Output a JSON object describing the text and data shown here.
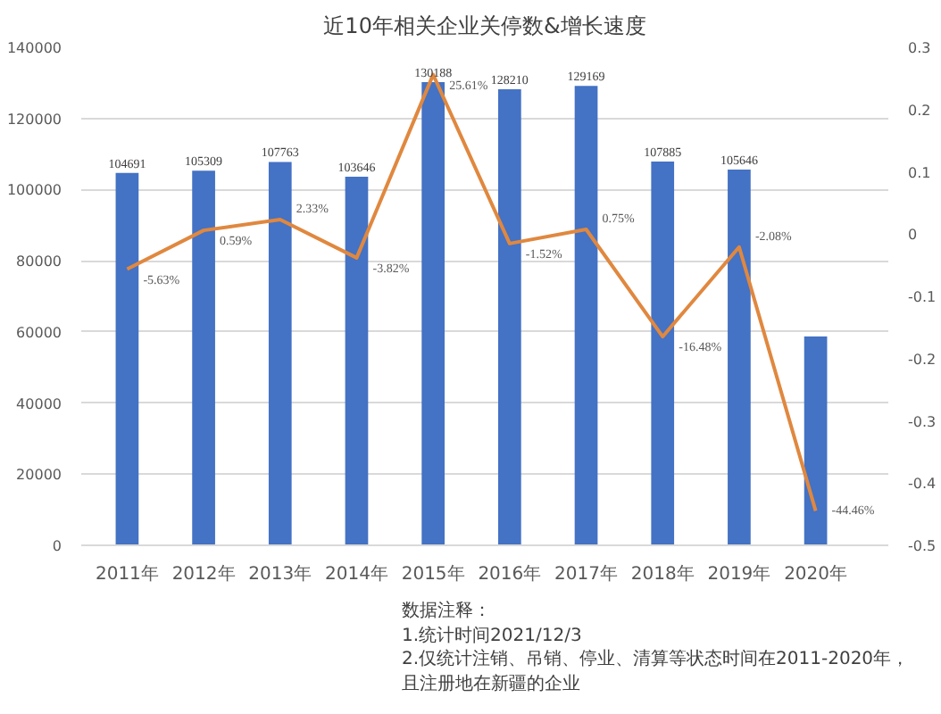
{
  "chart_data": {
    "type": "bar",
    "title": "近10年相关企业关停数&增长速度",
    "categories": [
      "2011年",
      "2012年",
      "2013年",
      "2014年",
      "2015年",
      "2016年",
      "2017年",
      "2018年",
      "2019年",
      "2020年"
    ],
    "series": [
      {
        "color": "#4472c4",
        "values": [
          104691,
          105309,
          107763,
          103646,
          130188,
          128210,
          129169,
          107885,
          105646,
          58700
        ],
        "value_labels": [
          "104691",
          "105309",
          "107763",
          "103646",
          "130188",
          "128210",
          "129169",
          "107885",
          "105646",
          null
        ]
      },
      {
        "type": "line",
        "axis": "y2",
        "color": "#e0883f",
        "values": [
          -0.0563,
          0.0059,
          0.0233,
          -0.0382,
          0.2561,
          -0.0152,
          0.0075,
          -0.1648,
          -0.0208,
          -0.4446
        ],
        "value_labels": [
          "-5.63%",
          "0.59%",
          "2.33%",
          "-3.82%",
          "25.61%",
          "-1.52%",
          "0.75%",
          "-16.48%",
          "-2.08%",
          "-44.46%"
        ]
      }
    ],
    "ylim": [
      0,
      140000
    ],
    "yticks": [
      0,
      20000,
      40000,
      60000,
      80000,
      100000,
      120000,
      140000
    ],
    "y2lim": [
      -0.5,
      0.3
    ],
    "y2ticks": [
      -0.5,
      -0.4,
      -0.3,
      -0.2,
      -0.1,
      0,
      0.1,
      0.2,
      0.3
    ],
    "grid": "y",
    "line_style": "solid",
    "annotations": [
      "数据注释：",
      "1.统计时间2021/12/3",
      "2.仅统计注销、吊销、停业、清算等状态时间在2011-2020年，且注册地在新疆的企业"
    ]
  }
}
